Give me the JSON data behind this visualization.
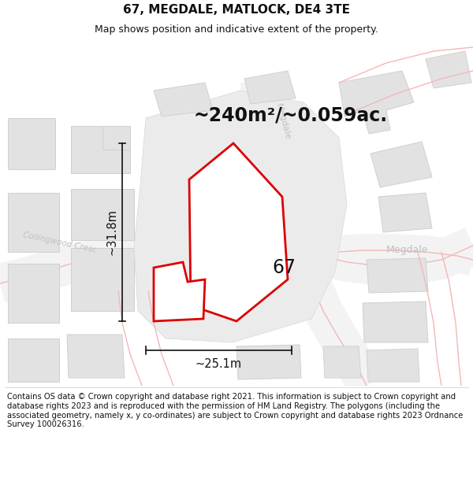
{
  "title": "67, MEGDALE, MATLOCK, DE4 3TE",
  "subtitle": "Map shows position and indicative extent of the property.",
  "area_text": "~240m²/~0.059ac.",
  "dim_h": "~31.8m",
  "dim_w": "~25.1m",
  "label_67": "67",
  "footer": "Contains OS data © Crown copyright and database right 2021. This information is subject to Crown copyright and database rights 2023 and is reproduced with the permission of HM Land Registry. The polygons (including the associated geometry, namely x, y co-ordinates) are subject to Crown copyright and database rights 2023 Ordnance Survey 100026316.",
  "bg_color": "#ffffff",
  "building_color": "#e2e2e2",
  "building_edge": "#d0d0d0",
  "road_pink": "#f2b8b8",
  "highlight_color": "#dd0000",
  "dim_color": "#111111",
  "text_color": "#111111",
  "road_label_color": "#c0c0c0",
  "title_fontsize": 11,
  "subtitle_fontsize": 9,
  "area_fontsize": 17,
  "label_fontsize": 17,
  "footer_fontsize": 7.2,
  "dim_fontsize": 10.5
}
